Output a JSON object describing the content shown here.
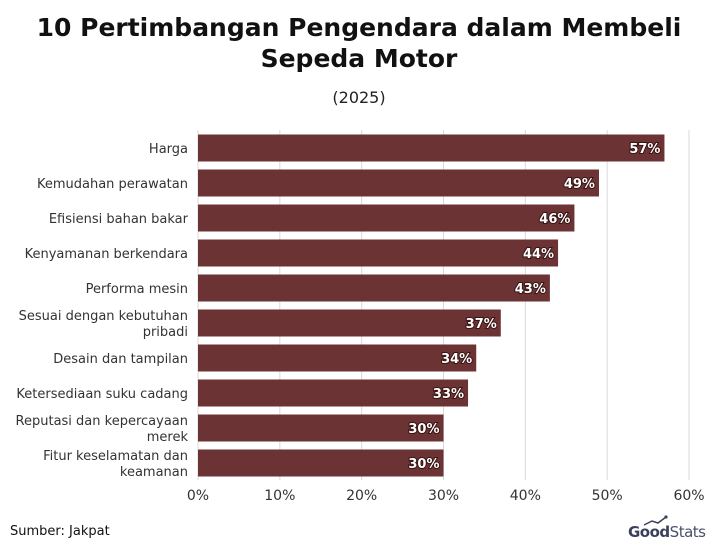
{
  "title": "10 Pertimbangan Pengendara dalam Membeli Sepeda Motor",
  "subtitle": "(2025)",
  "source": "Sumber: Jakpat",
  "logo": {
    "bold": "Good",
    "light": "Stats"
  },
  "colors": {
    "bar": "#6b3333",
    "grid": "#d9d9d9",
    "label": "#ffffff"
  },
  "chart_data": {
    "type": "bar",
    "orientation": "horizontal",
    "categories": [
      "Harga",
      "Kemudahan perawatan",
      "Efisiensi bahan bakar",
      "Kenyamanan berkendara",
      "Performa mesin",
      "Sesuai dengan kebutuhan pribadi",
      "Desain dan tampilan",
      "Ketersediaan suku cadang",
      "Reputasi dan kepercayaan merek",
      "Fitur keselamatan dan keamanan"
    ],
    "values": [
      57,
      49,
      46,
      44,
      43,
      37,
      34,
      33,
      30,
      30
    ],
    "data_labels": [
      "57%",
      "49%",
      "46%",
      "44%",
      "43%",
      "37%",
      "34%",
      "33%",
      "30%",
      "30%"
    ],
    "xlim": [
      0,
      60
    ],
    "xticks": [
      0,
      10,
      20,
      30,
      40,
      50,
      60
    ],
    "xtick_labels": [
      "0%",
      "10%",
      "20%",
      "30%",
      "40%",
      "50%",
      "60%"
    ],
    "grid": true
  }
}
